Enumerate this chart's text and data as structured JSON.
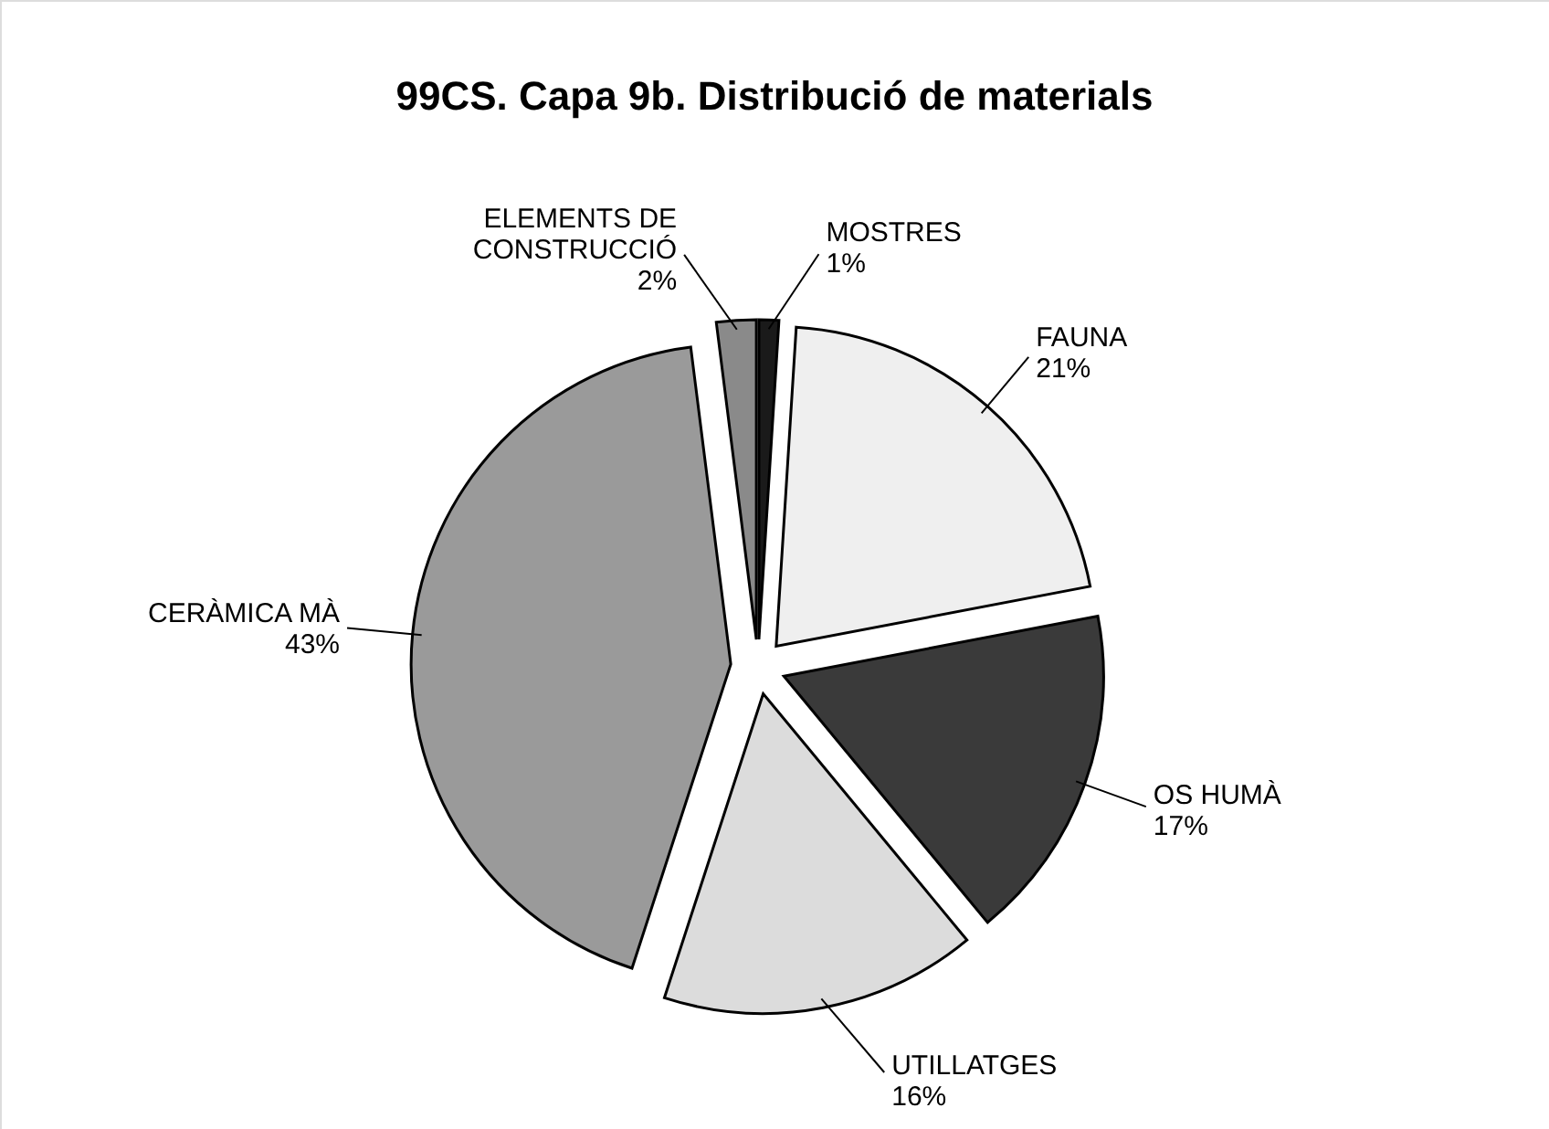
{
  "chart_data": {
    "type": "pie",
    "title": "99CS. Capa 9b. Distribució de materials",
    "categories": [
      "MOSTRES",
      "FAUNA",
      "OS HUMÀ",
      "UTILLATGES",
      "CERÀMICA MÀ",
      "ELEMENTS DE CONSTRUCCIÓ"
    ],
    "values": [
      1,
      21,
      17,
      16,
      43,
      2
    ],
    "value_labels": [
      "1%",
      "21%",
      "17%",
      "16%",
      "43%",
      "2%"
    ],
    "colors": [
      "#1a1a1a",
      "#efefef",
      "#3a3a3a",
      "#dcdcdc",
      "#9a9a9a",
      "#8a8a8a"
    ]
  }
}
